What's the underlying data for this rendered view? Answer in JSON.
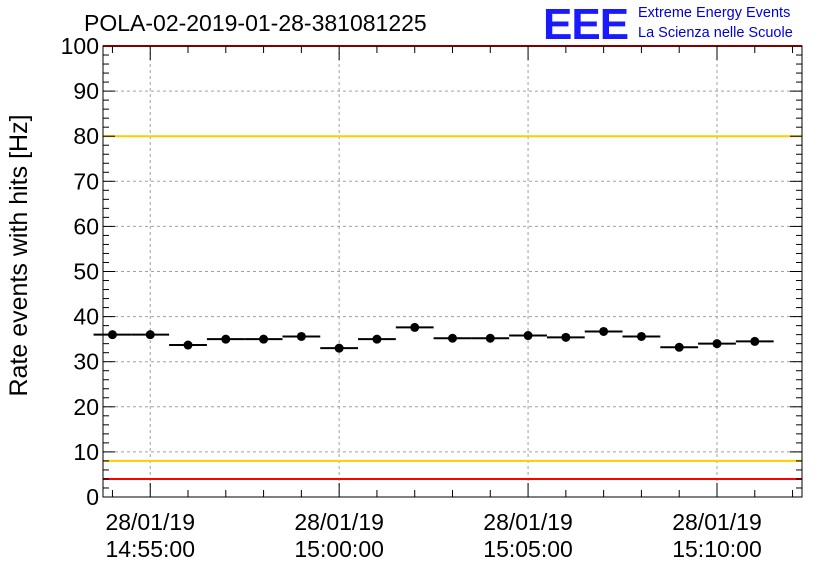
{
  "chart_data": {
    "type": "scatter",
    "title": "POLA-02-2019-01-28-381081225",
    "ylabel": "Rate events with hits [Hz]",
    "xlabel": "",
    "ylim": [
      0,
      100
    ],
    "yticks": [
      0,
      10,
      20,
      30,
      40,
      50,
      60,
      70,
      80,
      90,
      100
    ],
    "xlim": [
      "14:53:45",
      "15:12:15"
    ],
    "xticks": [
      {
        "time": "14:55:00",
        "date": "28/01/19"
      },
      {
        "time": "15:00:00",
        "date": "28/01/19"
      },
      {
        "time": "15:05:00",
        "date": "28/01/19"
      },
      {
        "time": "15:10:00",
        "date": "28/01/19"
      }
    ],
    "grid": true,
    "bin_width_s": 60,
    "series": [
      {
        "x": [
          "14:54:00",
          "14:55:00",
          "14:56:00",
          "14:57:00",
          "14:58:00",
          "14:59:00",
          "15:00:00",
          "15:01:00",
          "15:02:00",
          "15:03:00",
          "15:04:00",
          "15:05:00",
          "15:06:00",
          "15:07:00",
          "15:08:00",
          "15:09:00",
          "15:10:00",
          "15:11:00"
        ],
        "values": [
          36.0,
          36.0,
          33.7,
          35.0,
          35.0,
          35.6,
          33.0,
          35.0,
          37.6,
          35.2,
          35.2,
          35.8,
          35.4,
          36.7,
          35.6,
          33.2,
          34.0,
          34.5
        ],
        "color": "#000000"
      }
    ],
    "reference_lines": [
      {
        "y": 80,
        "color": "#ffcc00"
      },
      {
        "y": 8,
        "color": "#ffcc00"
      },
      {
        "y": 4,
        "color": "#ff0000"
      },
      {
        "y": 100,
        "color": "#ff0000"
      }
    ]
  },
  "logo": {
    "mark": "EEE",
    "line1": "Extreme Energy Events",
    "line2": "La Scienza nelle Scuole"
  }
}
